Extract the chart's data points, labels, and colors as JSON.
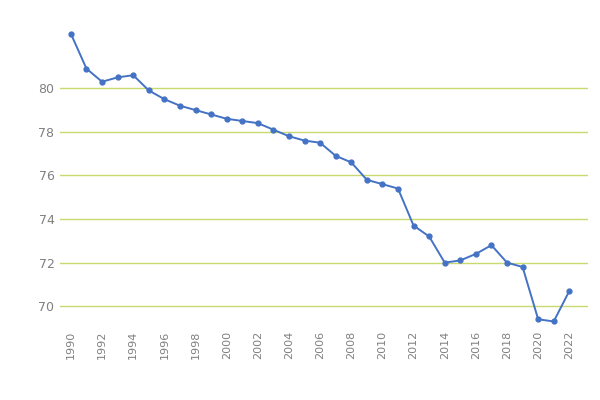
{
  "years": [
    1990,
    1991,
    1992,
    1993,
    1994,
    1995,
    1996,
    1997,
    1998,
    1999,
    2000,
    2001,
    2002,
    2003,
    2004,
    2005,
    2006,
    2007,
    2008,
    2009,
    2010,
    2011,
    2012,
    2013,
    2014,
    2015,
    2016,
    2017,
    2018,
    2019,
    2020,
    2021,
    2022
  ],
  "values": [
    82.5,
    80.9,
    80.3,
    80.5,
    80.6,
    79.9,
    79.5,
    79.2,
    79.0,
    78.8,
    78.6,
    78.5,
    78.4,
    78.1,
    77.8,
    77.6,
    77.5,
    76.9,
    76.6,
    75.8,
    75.6,
    75.4,
    73.7,
    73.2,
    72.0,
    72.1,
    72.4,
    72.8,
    72.0,
    71.8,
    69.4,
    69.3,
    70.7
  ],
  "line_color": "#4472C4",
  "marker_color": "#4472C4",
  "grid_color": "#c8d96f",
  "background_color": "#ffffff",
  "tick_label_color": "#808080",
  "ylim": [
    69.0,
    83.5
  ],
  "yticks": [
    70,
    72,
    74,
    76,
    78,
    80
  ],
  "xticks": [
    1990,
    1992,
    1994,
    1996,
    1998,
    2000,
    2002,
    2004,
    2006,
    2008,
    2010,
    2012,
    2014,
    2016,
    2018,
    2020,
    2022
  ],
  "xlim_left": 1989.3,
  "xlim_right": 2023.2
}
